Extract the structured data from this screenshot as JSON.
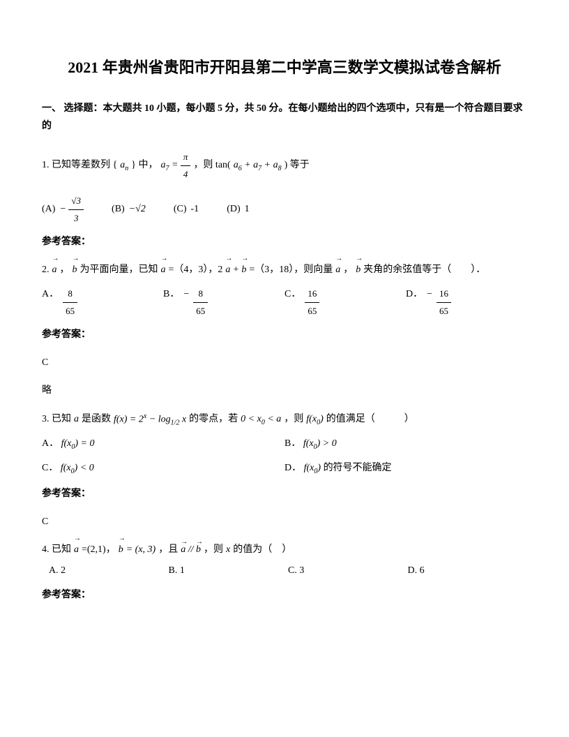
{
  "title": "2021 年贵州省贵阳市开阳县第二中学高三数学文模拟试卷含解析",
  "section1_header": "一、 选择题：本大题共 10 小题，每小题 5 分，共 50 分。在每小题给出的四个选项中，只有是一个符合题目要求的",
  "q1": {
    "pre": "1. 已知等差数列 {",
    "seqvar": "aₙ",
    "mid1": "} 中，",
    "formula_a7": "a₇ = π/4",
    "mid2": "，则 tan(",
    "formula_sum": "a₆ + a₇ + a₈",
    "mid3": ") 等于",
    "optA_label": "(A)",
    "optA": "−√3/3",
    "optB_label": "(B)",
    "optB": "−√2",
    "optC_label": "(C)",
    "optC": "-1",
    "optD_label": "(D)",
    "optD": "1"
  },
  "q2": {
    "text_pre": "2. ",
    "vec_a": "a",
    "comma1": "，",
    "vec_b": "b",
    "text1": " 为平面向量，已知 ",
    "text2": " =（4，3），2",
    "text3": " =（3，18），则向量 ",
    "text4": " 夹角的余弦值等于（　　）．",
    "plus": " + ",
    "optA_label": "A．",
    "optA_num": "8",
    "optA_den": "65",
    "optB_label": "B．",
    "optB_neg": "−",
    "optB_num": "8",
    "optB_den": "65",
    "optC_label": "C．",
    "optC_num": "16",
    "optC_den": "65",
    "optD_label": "D．",
    "optD_neg": "−",
    "optD_num": "16",
    "optD_den": "65"
  },
  "q3": {
    "pre": "3. 已知 ",
    "var_a": "a",
    "text1": " 是函数 ",
    "func": "f(x) = 2ˣ − log₁/₂ x",
    "text2": " 的零点，若 ",
    "cond": "0 < x₀ < a",
    "text3": "，则 ",
    "fx0": "f(x₀)",
    "text4": " 的值满足（　　　）",
    "optA_label": "A．",
    "optA": "f(x₀) = 0",
    "optB_label": "B．",
    "optB": "f(x₀) > 0",
    "optC_label": "C．",
    "optC": "f(x₀) < 0",
    "optD_label": "D．",
    "optD": "f(x₀)",
    "optD_tail": " 的符号不能确定"
  },
  "q4": {
    "pre": "4. 已知 ",
    "vec_a": "a",
    "text1": " =(2,1)，",
    "vec_b": "b",
    "b_val": " = (x, 3)",
    "text2": "，且 ",
    "parallel": "a // b",
    "text3": "，则 ",
    "var_x": "x",
    "text4": " 的值为（　）",
    "optA": "A. 2",
    "optB": "B. 1",
    "optC": "C. 3",
    "optD": "D. 6"
  },
  "answer_label": "参考答案：",
  "ans2": "C",
  "ans2_note": "略",
  "ans3": "C"
}
